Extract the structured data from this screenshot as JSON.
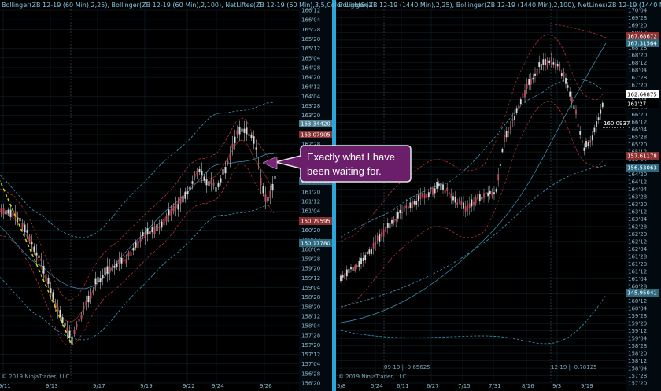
{
  "chart_data": [
    {
      "type": "line",
      "panel": "left",
      "header": "Bollinger(ZB 12-19 (60 Min),2,25), Bollinger(ZB 12-19 (60 Min),2,100), NetLiftes(ZB 12-19 (60 Min),3,5,Color LightSea",
      "copyright": "© 2019 NinjaTrader, LLC",
      "y_ticks": [
        "166'12",
        "166'04",
        "165'28",
        "165'20",
        "165'12",
        "165'04",
        "164'28",
        "164'20",
        "164'12",
        "164'04",
        "163'28",
        "163'20",
        "163'12",
        "163'04",
        "162'28",
        "162'20",
        "162'12",
        "162'04",
        "161'28",
        "161'20",
        "161'12",
        "161'04",
        "160'28",
        "160'20",
        "160'12",
        "160'04",
        "159'28",
        "159'20",
        "159'12",
        "159'04",
        "158'28",
        "158'20",
        "158'12",
        "158'04",
        "157'28",
        "157'20",
        "157'12",
        "157'04",
        "156'28",
        "156'20"
      ],
      "x_ticks": [
        "9/11",
        "9/13",
        "9/17",
        "9/19",
        "9/22",
        "9/24",
        "9/26"
      ],
      "price_labels": [
        {
          "text": "163.34420",
          "color": "#4a7f95"
        },
        {
          "text": "163.07905",
          "color": "#8a3030"
        },
        {
          "text": "161.69891",
          "color": "#2d6a80"
        },
        {
          "text": "160.79595",
          "color": "#8a3030"
        },
        {
          "text": "160.17780",
          "color": "#2d6a80"
        }
      ],
      "ylim": [
        156.6,
        166.5
      ],
      "trendline": {
        "from": {
          "x": "9/13",
          "y": 157.65
        },
        "to": {
          "x": "9/25",
          "y": 161.95
        },
        "color": "#c8e000"
      }
    },
    {
      "type": "line",
      "panel": "right",
      "header": "Bollinger(ZB 12-19 (1440 Min),2,25), Bollinger(ZB 12-19 (1440 Min),2,100), NetLines(ZB 12-19 (1440 Min),3,5,Colc",
      "copyright": "© 2019 NinjaTrader, LLC",
      "y_ticks": [
        "170'04",
        "169'28",
        "169'20",
        "169'12",
        "169'04",
        "168'28",
        "168'20",
        "168'12",
        "168'04",
        "167'28",
        "167'20",
        "167'12",
        "167'04",
        "166'28",
        "166'20",
        "166'12",
        "166'04",
        "165'28",
        "165'20",
        "165'12",
        "165'04",
        "164'28",
        "164'20",
        "164'12",
        "164'04",
        "163'28",
        "163'20",
        "163'12",
        "163'04",
        "162'28",
        "162'20",
        "162'12",
        "162'04",
        "161'28",
        "161'20",
        "161'12",
        "161'04",
        "160'28",
        "160'20",
        "160'12",
        "160'04",
        "159'28",
        "159'20",
        "159'12",
        "159'04",
        "158'28",
        "158'20",
        "158'12",
        "158'04",
        "157'28",
        "157'20"
      ],
      "x_ticks": [
        "5/8",
        "5/24",
        "6/11",
        "6/27",
        "7/15",
        "7/31",
        "8/16",
        "9/3",
        "9/19"
      ],
      "price_labels": [
        {
          "text": "167.68672",
          "color": "#8a3030"
        },
        {
          "text": "167.31564",
          "color": "#2d6a80"
        },
        {
          "text": "162.64875",
          "color": "#ffffff"
        },
        {
          "text": "161'27",
          "color": "#000000"
        },
        {
          "text": "157.61178",
          "color": "#8a3030"
        },
        {
          "text": "156.53063",
          "color": "#2d6a80"
        },
        {
          "text": "145.95041",
          "color": "#2d6a80"
        }
      ],
      "annotation_value": "160.0937",
      "bottom_labels": [
        "09-19 | -0.65625",
        "12-19 | -0.78125"
      ],
      "ylim": [
        138.0,
        170.2
      ]
    }
  ],
  "callout": {
    "line1": "Exactly what I have",
    "line2": "been waiting for."
  }
}
